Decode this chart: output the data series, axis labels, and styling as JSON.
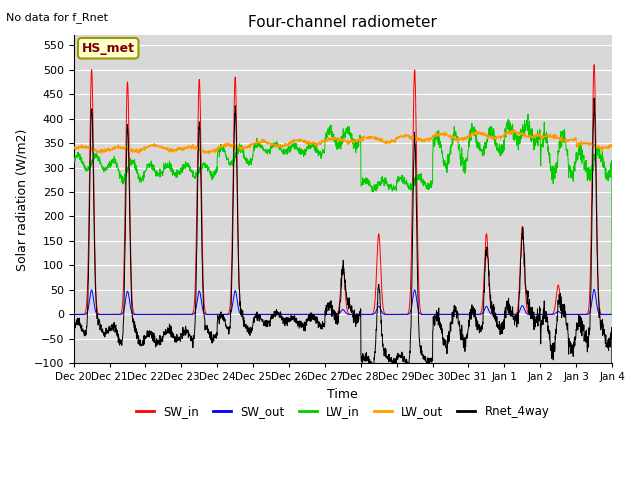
{
  "title": "Four-channel radiometer",
  "top_left_text": "No data for f_Rnet",
  "ylabel": "Solar radiation (W/m2)",
  "xlabel": "Time",
  "ylim": [
    -100,
    570
  ],
  "yticks": [
    -100,
    -50,
    0,
    50,
    100,
    150,
    200,
    250,
    300,
    350,
    400,
    450,
    500,
    550
  ],
  "x_labels": [
    "Dec 20",
    "Dec 21",
    "Dec 22",
    "Dec 23",
    "Dec 24",
    "Dec 25",
    "Dec 26",
    "Dec 27",
    "Dec 28",
    "Dec 29",
    "Dec 30",
    "Dec 31",
    "Jan 1",
    "Jan 2",
    "Jan 3",
    "Jan 4"
  ],
  "annotation_box": "HS_met",
  "colors": {
    "SW_in": "#ff0000",
    "SW_out": "#0000ff",
    "LW_in": "#00cc00",
    "LW_out": "#ff9900",
    "Rnet_4way": "#000000"
  },
  "bg_color": "#d8d8d8",
  "grid_color": "#ffffff"
}
